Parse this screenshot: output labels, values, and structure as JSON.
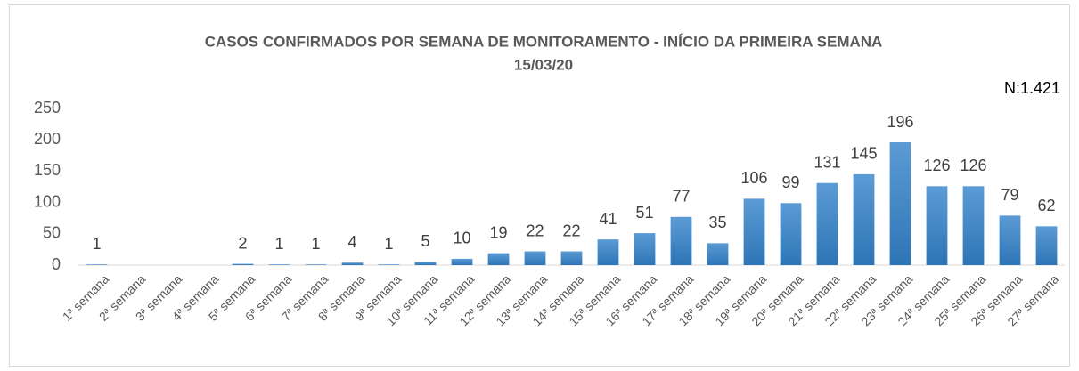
{
  "chart_data": {
    "type": "bar",
    "title_lines": [
      "CASOS CONFIRMADOS POR SEMANA DE MONITORAMENTO - INÍCIO DA PRIMEIRA SEMANA",
      "15/03/20"
    ],
    "annotation": "N:1.421",
    "categories": [
      "1ª semana",
      "2ª semana",
      "3ª semana",
      "4ª semana",
      "5ª semana",
      "6ª semana",
      "7ª semana",
      "8ª semana",
      "9ª semana",
      "10ª semana",
      "11ª semana",
      "12ª semana",
      "13ª semana",
      "14ª semana",
      "15ª semana",
      "16ª semana",
      "17ª semana",
      "18ª semana",
      "19ª semana",
      "20ª semana",
      "21ª semana",
      "22ª semana",
      "23ª semana",
      "24ª semana",
      "25ª semana",
      "26ª semana",
      "27ª semana"
    ],
    "values": [
      1,
      null,
      null,
      null,
      2,
      1,
      1,
      4,
      1,
      5,
      10,
      19,
      22,
      22,
      41,
      51,
      77,
      35,
      106,
      99,
      131,
      145,
      196,
      126,
      126,
      79,
      62
    ],
    "color": "#5b9bd5",
    "ylim": [
      0,
      250
    ],
    "yticks": [
      0,
      50,
      100,
      150,
      200,
      250
    ],
    "grid": false
  }
}
